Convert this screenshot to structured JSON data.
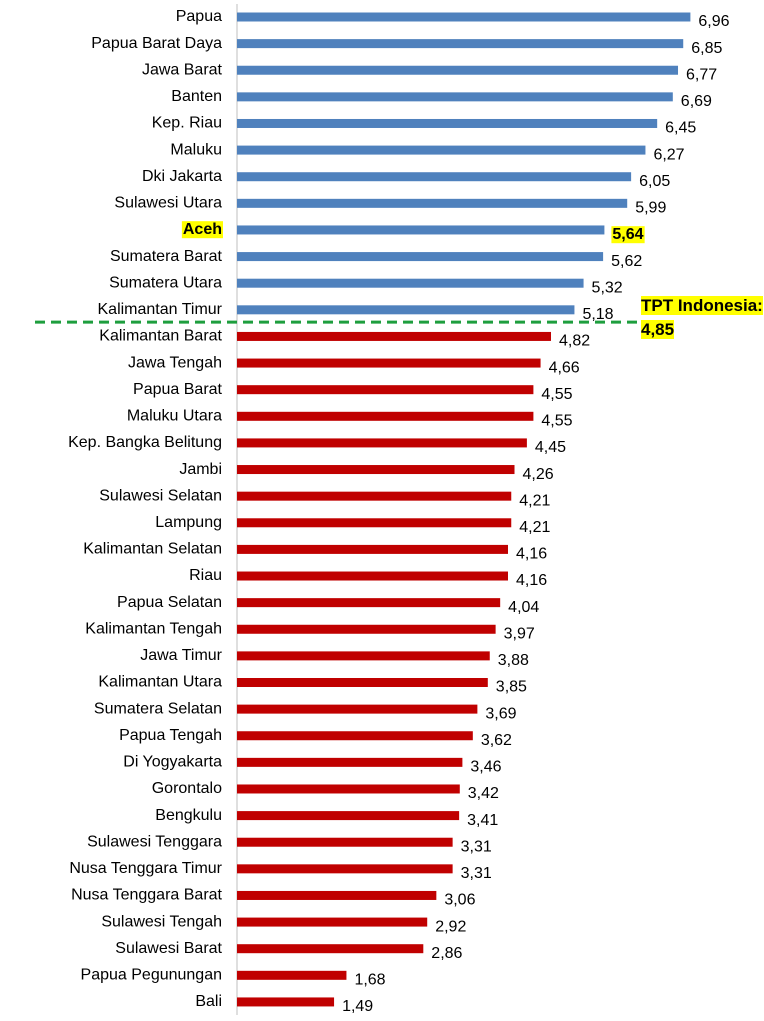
{
  "chart_data": {
    "type": "bar",
    "orientation": "horizontal",
    "categories": [
      "Papua",
      "Papua Barat Daya",
      "Jawa Barat",
      "Banten",
      "Kep. Riau",
      "Maluku",
      "Dki Jakarta",
      "Sulawesi Utara",
      "Aceh",
      "Sumatera Barat",
      "Sumatera Utara",
      "Kalimantan Timur",
      "Kalimantan Barat",
      "Jawa Tengah",
      "Papua Barat",
      "Maluku Utara",
      "Kep. Bangka Belitung",
      "Jambi",
      "Sulawesi Selatan",
      "Lampung",
      "Kalimantan Selatan",
      "Riau",
      "Papua Selatan",
      "Kalimantan Tengah",
      "Jawa Timur",
      "Kalimantan Utara",
      "Sumatera Selatan",
      "Papua Tengah",
      "Di Yogyakarta",
      "Gorontalo",
      "Bengkulu",
      "Sulawesi Tenggara",
      "Nusa Tenggara Timur",
      "Nusa Tenggara Barat",
      "Sulawesi Tengah",
      "Sulawesi Barat",
      "Papua Pegunungan",
      "Bali"
    ],
    "values": [
      6.96,
      6.85,
      6.77,
      6.69,
      6.45,
      6.27,
      6.05,
      5.99,
      5.64,
      5.62,
      5.32,
      5.18,
      4.82,
      4.66,
      4.55,
      4.55,
      4.45,
      4.26,
      4.21,
      4.21,
      4.16,
      4.16,
      4.04,
      3.97,
      3.88,
      3.85,
      3.69,
      3.62,
      3.46,
      3.42,
      3.41,
      3.31,
      3.31,
      3.06,
      2.92,
      2.86,
      1.68,
      1.49
    ],
    "value_labels": [
      "6,96",
      "6,85",
      "6,77",
      "6,69",
      "6,45",
      "6,27",
      "6,05",
      "5,99",
      "5,64",
      "5,62",
      "5,32",
      "5,18",
      "4,82",
      "4,66",
      "4,55",
      "4,55",
      "4,45",
      "4,26",
      "4,21",
      "4,21",
      "4,16",
      "4,16",
      "4,04",
      "3,97",
      "3,88",
      "3,85",
      "3,69",
      "3,62",
      "3,46",
      "3,42",
      "3,41",
      "3,31",
      "3,31",
      "3,06",
      "2,92",
      "2,86",
      "1,68",
      "1,49"
    ],
    "xlim": [
      0,
      7
    ],
    "color_above": "#4f81bd",
    "color_below": "#c00000",
    "threshold": 4.85,
    "threshold_color": "#1e9e3e",
    "annotation": "TPT Indonesia: 4,85",
    "highlight_index": 8,
    "highlight_color": "#ffff00"
  }
}
